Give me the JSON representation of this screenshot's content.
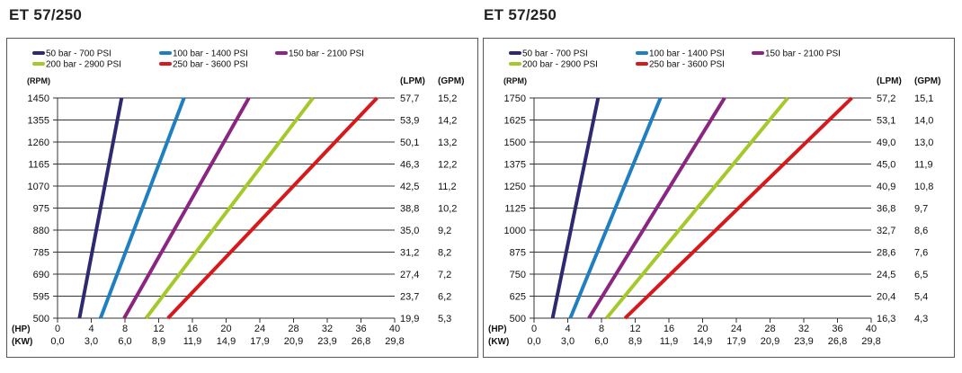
{
  "chart_data": [
    {
      "type": "line",
      "title": "ET 57/250",
      "legend": [
        "50 bar - 700 PSI",
        "100 bar - 1400 PSI",
        "150 bar - 2100 PSI",
        "200 bar - 2900 PSI",
        "250 bar - 3600 PSI"
      ],
      "y_unit": "(RPM)",
      "y_ticks": [
        "1450",
        "1355",
        "1260",
        "1165",
        "1070",
        "975",
        "880",
        "785",
        "690",
        "595",
        "500"
      ],
      "y_values": [
        1450,
        1355,
        1260,
        1165,
        1070,
        975,
        880,
        785,
        690,
        595,
        500
      ],
      "ylim": [
        500,
        1450
      ],
      "right_units": [
        "(LPM)",
        "(GPM)"
      ],
      "lpm": [
        "57,7",
        "53,9",
        "50,1",
        "46,3",
        "42,5",
        "38,8",
        "35,0",
        "31,2",
        "27,4",
        "23,7",
        "19,9"
      ],
      "gpm": [
        "15,2",
        "14,2",
        "13,2",
        "12,2",
        "11,2",
        "10,2",
        "9,2",
        "8,2",
        "7,2",
        "6,2",
        "5,3"
      ],
      "x_unit_hp": "(HP)",
      "x_unit_kw": "(KW)",
      "hp_ticks": [
        "0",
        "4",
        "8",
        "12",
        "16",
        "20",
        "24",
        "28",
        "32",
        "36",
        "40"
      ],
      "kw_ticks": [
        "0,0",
        "3,0",
        "6,0",
        "8,9",
        "11,9",
        "14,9",
        "17,9",
        "20,9",
        "23,9",
        "26,8",
        "29,8"
      ],
      "xlim": [
        0,
        40
      ],
      "series": [
        {
          "name": "50 bar - 700 PSI",
          "color": "#2e2a72",
          "x": [
            2.6,
            7.6
          ],
          "y": [
            500,
            1450
          ]
        },
        {
          "name": "100 bar - 1400 PSI",
          "color": "#1f7fc1",
          "x": [
            5.1,
            15.0
          ],
          "y": [
            500,
            1450
          ]
        },
        {
          "name": "150 bar - 2100 PSI",
          "color": "#8a2682",
          "x": [
            7.9,
            22.7
          ],
          "y": [
            500,
            1450
          ]
        },
        {
          "name": "200 bar - 2900 PSI",
          "color": "#a5c92a",
          "x": [
            10.5,
            30.3
          ],
          "y": [
            500,
            1450
          ]
        },
        {
          "name": "250 bar - 3600 PSI",
          "color": "#d7191c",
          "x": [
            13.1,
            37.9
          ],
          "y": [
            500,
            1450
          ]
        }
      ]
    },
    {
      "type": "line",
      "title": "ET 57/250",
      "legend": [
        "50 bar - 700 PSI",
        "100 bar - 1400 PSI",
        "150 bar - 2100 PSI",
        "200 bar - 2900 PSI",
        "250 bar - 3600 PSI"
      ],
      "y_unit": "(RPM)",
      "y_ticks": [
        "1750",
        "1625",
        "1500",
        "1375",
        "1250",
        "1125",
        "1000",
        "875",
        "750",
        "625",
        "500"
      ],
      "y_values": [
        1750,
        1625,
        1500,
        1375,
        1250,
        1125,
        1000,
        875,
        750,
        625,
        500
      ],
      "ylim": [
        500,
        1750
      ],
      "right_units": [
        "(LPM)",
        "(GPM)"
      ],
      "lpm": [
        "57,2",
        "53,1",
        "49,0",
        "45,0",
        "40,9",
        "36,8",
        "32,7",
        "28,6",
        "24,5",
        "20,4",
        "16,3"
      ],
      "gpm": [
        "15,1",
        "14,0",
        "13,0",
        "11,9",
        "10,8",
        "9,7",
        "8,6",
        "7,6",
        "6,5",
        "5,4",
        "4,3"
      ],
      "x_unit_hp": "(HP)",
      "x_unit_kw": "(KW)",
      "hp_ticks": [
        "0",
        "4",
        "8",
        "12",
        "16",
        "20",
        "24",
        "28",
        "32",
        "36",
        "40"
      ],
      "kw_ticks": [
        "0,0",
        "3,0",
        "6,0",
        "8,9",
        "11,9",
        "14,9",
        "17,9",
        "20,9",
        "23,9",
        "26,8",
        "29,8"
      ],
      "xlim": [
        0,
        40
      ],
      "series": [
        {
          "name": "50 bar - 700 PSI",
          "color": "#2e2a72",
          "x": [
            2.2,
            7.6
          ],
          "y": [
            500,
            1750
          ]
        },
        {
          "name": "100 bar - 1400 PSI",
          "color": "#1f7fc1",
          "x": [
            4.3,
            15.0
          ],
          "y": [
            500,
            1750
          ]
        },
        {
          "name": "150 bar - 2100 PSI",
          "color": "#8a2682",
          "x": [
            6.5,
            22.6
          ],
          "y": [
            500,
            1750
          ]
        },
        {
          "name": "200 bar - 2900 PSI",
          "color": "#a5c92a",
          "x": [
            8.6,
            30.1
          ],
          "y": [
            500,
            1750
          ]
        },
        {
          "name": "250 bar - 3600 PSI",
          "color": "#d7191c",
          "x": [
            10.8,
            37.7
          ],
          "y": [
            500,
            1750
          ]
        }
      ]
    }
  ]
}
